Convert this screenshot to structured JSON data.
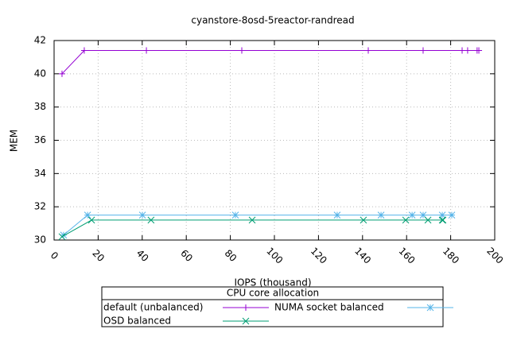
{
  "chart_data": {
    "type": "line",
    "title": "cyanstore-8osd-5reactor-randread",
    "x_label": "IOPS (thousand)",
    "y_label": "MEM",
    "legend_title": "CPU core allocation",
    "xlim": [
      0,
      200
    ],
    "ylim": [
      30,
      42
    ],
    "xticks": [
      0,
      20,
      40,
      60,
      80,
      100,
      120,
      140,
      160,
      180,
      200
    ],
    "yticks": [
      30,
      32,
      34,
      36,
      38,
      40,
      42
    ],
    "grid": true,
    "series": [
      {
        "name": "default (unbalanced)",
        "color": "#9400d3",
        "marker": "plus",
        "x": [
          3.6,
          13.7,
          41.9,
          85.2,
          142.6,
          167.5,
          185.2,
          187.7,
          192,
          192.8
        ],
        "values": [
          40.0,
          41.4,
          41.4,
          41.4,
          41.4,
          41.4,
          41.4,
          41.4,
          41.4,
          41.4
        ]
      },
      {
        "name": "NUMA socket balanced",
        "color": "#56b4e9",
        "marker": "star",
        "x": [
          4.3,
          15.2,
          40.1,
          82.3,
          128.5,
          148.4,
          162.5,
          167.5,
          176.2,
          180.5
        ],
        "values": [
          30.3,
          31.5,
          31.5,
          31.5,
          31.5,
          31.5,
          31.5,
          31.5,
          31.5,
          31.5
        ]
      },
      {
        "name": "OSD balanced",
        "color": "#009e73",
        "marker": "cross",
        "x": [
          3.6,
          17,
          44,
          89.9,
          140.4,
          159.6,
          169.7,
          176.2,
          176.5
        ],
        "values": [
          30.2,
          31.2,
          31.2,
          31.2,
          31.2,
          31.2,
          31.2,
          31.2,
          31.2
        ]
      }
    ]
  }
}
